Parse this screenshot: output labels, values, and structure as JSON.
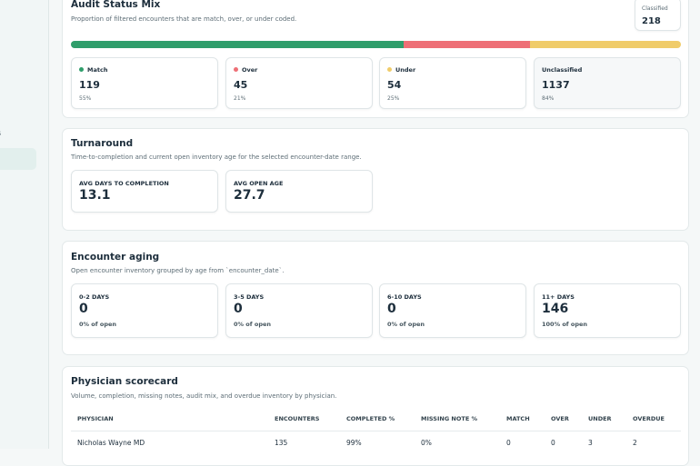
{
  "sidebar": {
    "items": [
      "s"
    ]
  },
  "audit": {
    "title": "Audit Status Mix",
    "subtitle": "Proportion of filtered encounters that are match, over, or under coded.",
    "classified": {
      "label": "Classified",
      "value": 218
    },
    "stats": [
      {
        "label": "Match",
        "value": 119,
        "pct": "55%",
        "color": "#2f9e6b"
      },
      {
        "label": "Over",
        "value": 45,
        "pct": "21%",
        "color": "#ee6f76"
      },
      {
        "label": "Under",
        "value": 54,
        "pct": "25%",
        "color": "#f0cc6a"
      },
      {
        "label": "Unclassified",
        "value": 1137,
        "pct": "84%"
      }
    ]
  },
  "turnaround": {
    "title": "Turnaround",
    "subtitle": "Time-to-completion and current open inventory age for the selected encounter-date range.",
    "stats": [
      {
        "label": "AVG DAYS TO COMPLETION",
        "value": 13.1
      },
      {
        "label": "AVG OPEN AGE",
        "value": 27.7
      }
    ]
  },
  "aging": {
    "title": "Encounter aging",
    "subtitle": "Open encounter inventory grouped by age from `encounter_date`.",
    "stats": [
      {
        "label": "0-2 DAYS",
        "value": 0,
        "note": "0% of open"
      },
      {
        "label": "3-5 DAYS",
        "value": 0,
        "note": "0% of open"
      },
      {
        "label": "6-10 DAYS",
        "value": 0,
        "note": "0% of open"
      },
      {
        "label": "11+ DAYS",
        "value": 146,
        "note": "100% of open"
      }
    ]
  },
  "scorecard": {
    "title": "Physician scorecard",
    "subtitle": "Volume, completion, missing notes, audit mix, and overdue inventory by physician.",
    "table": {
      "header": [
        "PHYSICIAN",
        "ENCOUNTERS",
        "COMPLETED %",
        "MISSING NOTE %",
        "MATCH",
        "OVER",
        "UNDER",
        "OVERDUE"
      ],
      "rows": [
        [
          "Nicholas Wayne MD",
          "135",
          "99%",
          "0%",
          "0",
          "0",
          "3",
          "2"
        ]
      ]
    }
  }
}
